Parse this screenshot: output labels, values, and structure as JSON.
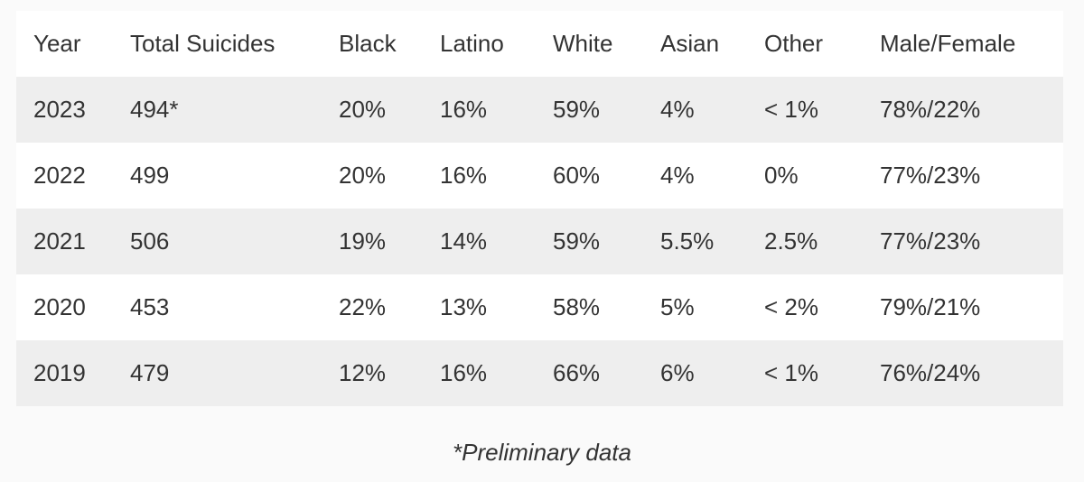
{
  "table": {
    "columns": [
      "Year",
      "Total Suicides",
      "Black",
      "Latino",
      "White",
      "Asian",
      "Other",
      "Male/Female"
    ],
    "rows": [
      [
        "2023",
        "494*",
        "20%",
        "16%",
        "59%",
        "4%",
        "< 1%",
        "78%/22%"
      ],
      [
        "2022",
        "499",
        "20%",
        "16%",
        "60%",
        "4%",
        "0%",
        "77%/23%"
      ],
      [
        "2021",
        "506",
        "19%",
        "14%",
        "59%",
        "5.5%",
        "2.5%",
        "77%/23%"
      ],
      [
        "2020",
        "453",
        "22%",
        "13%",
        "58%",
        "5%",
        "< 2%",
        "79%/21%"
      ],
      [
        "2019",
        "479",
        "12%",
        "16%",
        "66%",
        "6%",
        "< 1%",
        "76%/24%"
      ]
    ]
  },
  "caption": "*Preliminary data"
}
